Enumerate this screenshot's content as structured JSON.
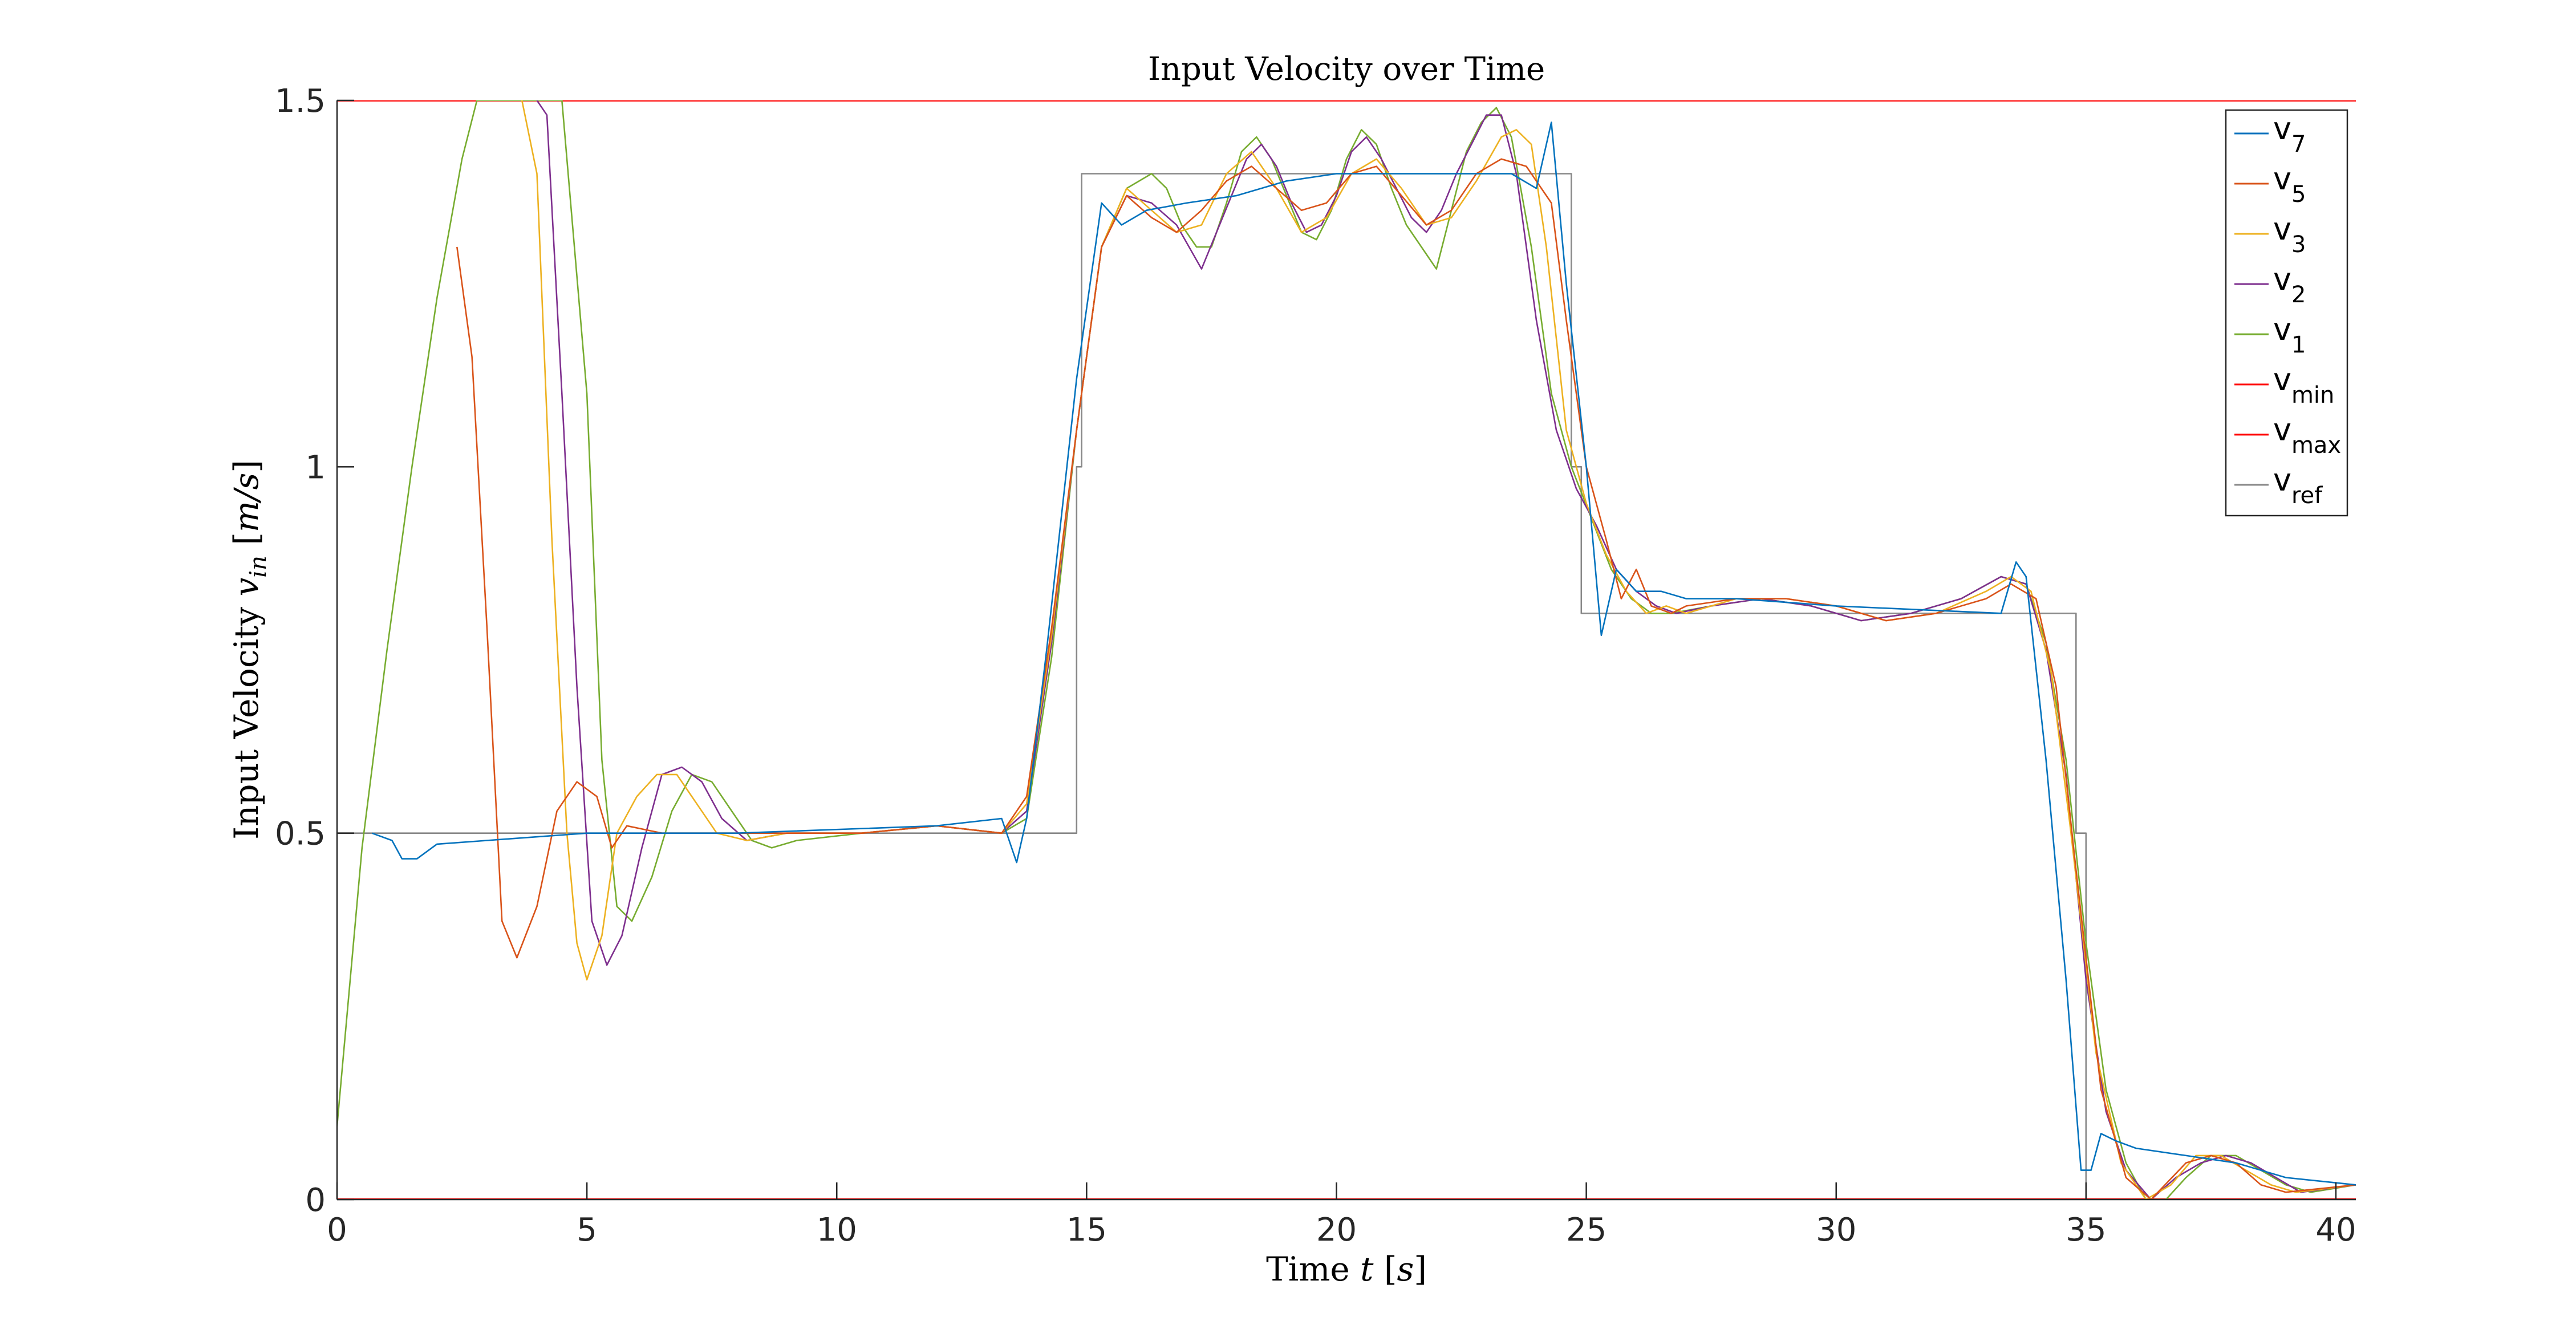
{
  "chart_data": {
    "type": "line",
    "title": "Input Velocity over Time",
    "xlabel": "Time t [s]",
    "xlabel_parts": {
      "prefix": "Time ",
      "var": "t",
      "unit": "s"
    },
    "ylabel": "Input Velocity v_in [m/s]",
    "ylabel_parts": {
      "prefix": "Input Velocity ",
      "var": "v",
      "sub": "in",
      "unit": "m/s"
    },
    "xlim": [
      0,
      40.4
    ],
    "ylim": [
      0,
      1.5
    ],
    "xticks": [
      0,
      5,
      10,
      15,
      20,
      25,
      30,
      35,
      40
    ],
    "yticks": [
      0,
      0.5,
      1,
      1.5
    ],
    "xtick_labels": [
      "0",
      "5",
      "10",
      "15",
      "20",
      "25",
      "30",
      "35",
      "40"
    ],
    "ytick_labels": [
      "0",
      "0.5",
      "1",
      "1.5"
    ],
    "grid": false,
    "legend_position": "top-right",
    "series": [
      {
        "name": "v_7",
        "label": "v",
        "sub": "7",
        "color": "#0072BD",
        "x": [
          0.7,
          1.1,
          1.3,
          1.6,
          2,
          3,
          5,
          8,
          12,
          13.3,
          13.6,
          13.8,
          14.2,
          14.8,
          15.3,
          15.7,
          16.2,
          17,
          18,
          19,
          20,
          22,
          23.5,
          24,
          24.3,
          24.6,
          25,
          25.3,
          25.6,
          26,
          26.5,
          27,
          28,
          30,
          33.3,
          33.6,
          33.8,
          34.2,
          34.6,
          34.9,
          35.1,
          35.3,
          35.6,
          36,
          37,
          38,
          39,
          40.4
        ],
        "y": [
          0.5,
          0.49,
          0.465,
          0.465,
          0.485,
          0.49,
          0.5,
          0.5,
          0.51,
          0.52,
          0.46,
          0.52,
          0.75,
          1.12,
          1.36,
          1.33,
          1.35,
          1.36,
          1.37,
          1.39,
          1.4,
          1.4,
          1.4,
          1.38,
          1.47,
          1.25,
          1.0,
          0.77,
          0.86,
          0.83,
          0.83,
          0.82,
          0.82,
          0.81,
          0.8,
          0.87,
          0.85,
          0.6,
          0.3,
          0.04,
          0.04,
          0.09,
          0.08,
          0.07,
          0.06,
          0.05,
          0.03,
          0.02
        ]
      },
      {
        "name": "v_5",
        "label": "v",
        "sub": "5",
        "color": "#D95319",
        "x": [
          2.4,
          2.7,
          3,
          3.3,
          3.6,
          4,
          4.4,
          4.8,
          5.2,
          5.5,
          5.8,
          6.5,
          7.5,
          9,
          10.5,
          12,
          13.3,
          13.8,
          14.3,
          14.8,
          15.3,
          15.8,
          16.3,
          16.8,
          17.3,
          17.8,
          18.3,
          18.8,
          19.3,
          19.8,
          20.3,
          20.8,
          21.3,
          21.8,
          22.3,
          22.8,
          23.3,
          23.8,
          24.3,
          24.6,
          25,
          25.4,
          25.7,
          26,
          26.3,
          26.7,
          27,
          28,
          29,
          30,
          31,
          32,
          33,
          33.5,
          34,
          34.4,
          34.8,
          35.3,
          35.8,
          36.3,
          37,
          37.5,
          38,
          38.5,
          39,
          40.4
        ],
        "y": [
          1.3,
          1.15,
          0.78,
          0.38,
          0.33,
          0.4,
          0.53,
          0.57,
          0.55,
          0.48,
          0.51,
          0.5,
          0.5,
          0.5,
          0.5,
          0.51,
          0.5,
          0.55,
          0.78,
          1.05,
          1.3,
          1.37,
          1.34,
          1.32,
          1.35,
          1.39,
          1.41,
          1.38,
          1.35,
          1.36,
          1.4,
          1.41,
          1.37,
          1.33,
          1.35,
          1.4,
          1.42,
          1.41,
          1.36,
          1.2,
          1.0,
          0.9,
          0.82,
          0.86,
          0.81,
          0.8,
          0.81,
          0.82,
          0.82,
          0.81,
          0.79,
          0.8,
          0.82,
          0.84,
          0.82,
          0.7,
          0.45,
          0.15,
          0.03,
          0.0,
          0.05,
          0.06,
          0.05,
          0.02,
          0.01,
          0.02
        ]
      },
      {
        "name": "v_3",
        "label": "v",
        "sub": "3",
        "color": "#EDB120",
        "x": [
          3.7,
          4,
          4.3,
          4.6,
          4.8,
          5,
          5.3,
          5.6,
          6,
          6.4,
          6.8,
          7.2,
          7.6,
          8.2,
          9,
          10.5,
          12,
          13.3,
          13.8,
          14.3,
          14.8,
          15.3,
          15.8,
          16.3,
          16.8,
          17.3,
          17.8,
          18.3,
          18.8,
          19.3,
          19.8,
          20.3,
          20.8,
          21.3,
          21.8,
          22.3,
          22.8,
          23.3,
          23.6,
          23.9,
          24.2,
          24.6,
          25,
          25.4,
          25.8,
          26.2,
          26.6,
          27,
          28,
          29,
          30,
          31,
          32,
          33,
          33.5,
          33.9,
          34.3,
          34.7,
          35.2,
          35.7,
          36.2,
          36.7,
          37.2,
          37.7,
          38.2,
          38.7,
          39.2,
          40.4
        ],
        "y": [
          1.5,
          1.4,
          0.9,
          0.5,
          0.35,
          0.3,
          0.36,
          0.5,
          0.55,
          0.58,
          0.58,
          0.54,
          0.5,
          0.49,
          0.5,
          0.5,
          0.51,
          0.5,
          0.54,
          0.77,
          1.05,
          1.3,
          1.38,
          1.35,
          1.32,
          1.33,
          1.4,
          1.43,
          1.38,
          1.32,
          1.34,
          1.4,
          1.42,
          1.38,
          1.33,
          1.34,
          1.39,
          1.45,
          1.46,
          1.44,
          1.3,
          1.05,
          0.95,
          0.88,
          0.83,
          0.8,
          0.81,
          0.8,
          0.82,
          0.82,
          0.81,
          0.79,
          0.8,
          0.83,
          0.85,
          0.83,
          0.72,
          0.5,
          0.2,
          0.05,
          0.0,
          0.02,
          0.06,
          0.06,
          0.04,
          0.02,
          0.01,
          0.02
        ]
      },
      {
        "name": "v_2",
        "label": "v",
        "sub": "2",
        "color": "#7E2F8E",
        "x": [
          4.0,
          4.2,
          4.5,
          4.8,
          5.1,
          5.4,
          5.7,
          6.1,
          6.5,
          6.9,
          7.3,
          7.7,
          8.2,
          9,
          10.5,
          12,
          13.3,
          13.8,
          14.3,
          14.8,
          15.3,
          15.8,
          16.3,
          16.8,
          17.3,
          17.6,
          17.9,
          18.2,
          18.5,
          18.8,
          19.1,
          19.4,
          19.7,
          20,
          20.3,
          20.6,
          20.9,
          21.2,
          21.5,
          21.8,
          22.1,
          22.4,
          22.7,
          23,
          23.3,
          23.6,
          24,
          24.4,
          24.8,
          25.2,
          25.6,
          26,
          26.4,
          26.8,
          27.5,
          28.5,
          29.5,
          30.5,
          31.5,
          32.5,
          33.3,
          33.8,
          34.2,
          34.6,
          35,
          35.4,
          35.8,
          36.3,
          36.8,
          37.3,
          37.8,
          38.3,
          38.8,
          39.3,
          40.4
        ],
        "y": [
          1.5,
          1.48,
          1.1,
          0.7,
          0.38,
          0.32,
          0.36,
          0.48,
          0.58,
          0.59,
          0.57,
          0.52,
          0.49,
          0.5,
          0.5,
          0.51,
          0.5,
          0.53,
          0.76,
          1.05,
          1.3,
          1.37,
          1.36,
          1.33,
          1.27,
          1.32,
          1.37,
          1.42,
          1.44,
          1.41,
          1.36,
          1.32,
          1.33,
          1.37,
          1.43,
          1.45,
          1.42,
          1.38,
          1.34,
          1.32,
          1.35,
          1.4,
          1.44,
          1.48,
          1.48,
          1.4,
          1.2,
          1.05,
          0.97,
          0.92,
          0.86,
          0.83,
          0.81,
          0.8,
          0.81,
          0.82,
          0.81,
          0.79,
          0.8,
          0.82,
          0.85,
          0.84,
          0.75,
          0.58,
          0.3,
          0.12,
          0.04,
          0.0,
          0.03,
          0.05,
          0.06,
          0.05,
          0.03,
          0.01,
          0.02
        ]
      },
      {
        "name": "v_1",
        "label": "v",
        "sub": "1",
        "color": "#77AC30",
        "x": [
          0,
          0.5,
          1,
          1.5,
          2,
          2.5,
          2.8,
          3.1,
          3.5,
          4,
          4.5,
          5,
          5.3,
          5.6,
          5.9,
          6.3,
          6.7,
          7.1,
          7.5,
          7.9,
          8.3,
          8.7,
          9.2,
          10.5,
          12,
          13.3,
          13.8,
          14.3,
          14.8,
          15.3,
          15.8,
          16.3,
          16.6,
          16.9,
          17.2,
          17.5,
          17.8,
          18.1,
          18.4,
          18.7,
          19,
          19.3,
          19.6,
          19.9,
          20.2,
          20.5,
          20.8,
          21.1,
          21.4,
          21.7,
          22,
          22.3,
          22.6,
          22.9,
          23.2,
          23.5,
          23.9,
          24.3,
          24.7,
          25.1,
          25.5,
          25.9,
          26.3,
          26.7,
          27.5,
          28.5,
          29.5,
          30.5,
          31.5,
          32.5,
          33.3,
          33.8,
          34.2,
          34.6,
          35,
          35.4,
          35.8,
          36.2,
          36.6,
          37,
          37.5,
          38,
          38.5,
          39,
          39.5,
          40.4
        ],
        "y": [
          0.1,
          0.48,
          0.75,
          1.0,
          1.23,
          1.42,
          1.5,
          1.5,
          1.5,
          1.5,
          1.5,
          1.1,
          0.6,
          0.4,
          0.38,
          0.44,
          0.53,
          0.58,
          0.57,
          0.53,
          0.49,
          0.48,
          0.49,
          0.5,
          0.51,
          0.5,
          0.52,
          0.74,
          1.05,
          1.3,
          1.38,
          1.4,
          1.38,
          1.33,
          1.3,
          1.3,
          1.36,
          1.43,
          1.45,
          1.42,
          1.37,
          1.32,
          1.31,
          1.35,
          1.42,
          1.46,
          1.44,
          1.38,
          1.33,
          1.3,
          1.27,
          1.35,
          1.43,
          1.47,
          1.49,
          1.45,
          1.3,
          1.1,
          1.0,
          0.93,
          0.86,
          0.82,
          0.8,
          0.8,
          0.81,
          0.82,
          0.81,
          0.79,
          0.8,
          0.82,
          0.85,
          0.84,
          0.76,
          0.6,
          0.35,
          0.15,
          0.05,
          0.0,
          0.0,
          0.03,
          0.06,
          0.06,
          0.04,
          0.02,
          0.01,
          0.02
        ]
      },
      {
        "name": "v_min",
        "label": "v",
        "sub": "min",
        "color": "#FF0000",
        "x": [
          0,
          40.4
        ],
        "y": [
          0,
          0
        ]
      },
      {
        "name": "v_max",
        "label": "v",
        "sub": "max",
        "color": "#FF0000",
        "x": [
          0,
          40.4
        ],
        "y": [
          1.5,
          1.5
        ]
      },
      {
        "name": "v_ref",
        "label": "v",
        "sub": "ref",
        "color": "#888888",
        "x": [
          0,
          14.8,
          14.8,
          14.9,
          14.9,
          24.7,
          24.7,
          24.9,
          24.9,
          34.8,
          34.8,
          35.0,
          35.0,
          40.4
        ],
        "y": [
          0.5,
          0.5,
          1.0,
          1.0,
          1.4,
          1.4,
          1.0,
          1.0,
          0.8,
          0.8,
          0.5,
          0.5,
          0.0,
          0.0
        ]
      }
    ]
  }
}
